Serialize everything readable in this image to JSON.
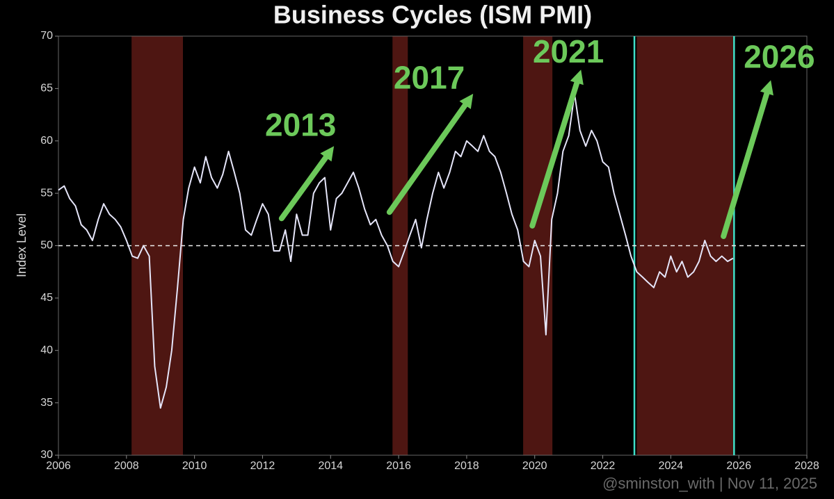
{
  "chart_data": {
    "type": "line",
    "title": "Business Cycles (ISM PMI)",
    "y_label": "Index Level",
    "credit": "@sminston_with  |  Nov 11, 2025",
    "color": "#e6e6fa",
    "x": [
      2006.0,
      2006.17,
      2006.33,
      2006.5,
      2006.67,
      2006.83,
      2007.0,
      2007.17,
      2007.33,
      2007.5,
      2007.67,
      2007.83,
      2008.0,
      2008.17,
      2008.33,
      2008.5,
      2008.67,
      2008.83,
      2009.0,
      2009.17,
      2009.33,
      2009.5,
      2009.67,
      2009.83,
      2010.0,
      2010.17,
      2010.33,
      2010.5,
      2010.67,
      2010.83,
      2011.0,
      2011.17,
      2011.33,
      2011.5,
      2011.67,
      2011.83,
      2012.0,
      2012.17,
      2012.33,
      2012.5,
      2012.67,
      2012.83,
      2013.0,
      2013.17,
      2013.33,
      2013.5,
      2013.67,
      2013.83,
      2014.0,
      2014.17,
      2014.33,
      2014.5,
      2014.67,
      2014.83,
      2015.0,
      2015.17,
      2015.33,
      2015.5,
      2015.67,
      2015.83,
      2016.0,
      2016.17,
      2016.33,
      2016.5,
      2016.67,
      2016.83,
      2017.0,
      2017.17,
      2017.33,
      2017.5,
      2017.67,
      2017.83,
      2018.0,
      2018.17,
      2018.33,
      2018.5,
      2018.67,
      2018.83,
      2019.0,
      2019.17,
      2019.33,
      2019.5,
      2019.67,
      2019.83,
      2020.0,
      2020.17,
      2020.33,
      2020.5,
      2020.67,
      2020.83,
      2021.0,
      2021.17,
      2021.33,
      2021.5,
      2021.67,
      2021.83,
      2022.0,
      2022.17,
      2022.33,
      2022.5,
      2022.67,
      2022.83,
      2023.0,
      2023.17,
      2023.33,
      2023.5,
      2023.67,
      2023.83,
      2024.0,
      2024.17,
      2024.33,
      2024.5,
      2024.67,
      2024.83,
      2025.0,
      2025.17,
      2025.33,
      2025.5,
      2025.67,
      2025.83
    ],
    "values": [
      55.3,
      55.7,
      54.5,
      53.8,
      52.0,
      51.5,
      50.5,
      52.5,
      54.0,
      53.0,
      52.5,
      51.8,
      50.5,
      49.0,
      48.8,
      50.0,
      49.0,
      38.5,
      34.5,
      36.5,
      40.0,
      46.0,
      52.5,
      55.5,
      57.5,
      56.0,
      58.5,
      56.5,
      55.5,
      56.8,
      59.0,
      57.0,
      55.0,
      51.5,
      51.0,
      52.5,
      54.0,
      53.0,
      49.5,
      49.5,
      51.5,
      48.5,
      53.0,
      51.0,
      51.0,
      55.0,
      56.0,
      56.5,
      51.5,
      54.5,
      55.0,
      56.0,
      57.0,
      55.5,
      53.5,
      52.0,
      52.5,
      51.0,
      50.0,
      48.5,
      48.0,
      49.5,
      51.0,
      52.5,
      49.8,
      52.5,
      55.0,
      57.0,
      55.5,
      57.0,
      59.0,
      58.5,
      60.0,
      59.5,
      59.0,
      60.5,
      59.0,
      58.5,
      57.0,
      55.0,
      53.0,
      51.5,
      48.5,
      48.0,
      50.5,
      49.0,
      41.5,
      52.5,
      55.0,
      59.0,
      60.5,
      64.5,
      61.0,
      59.5,
      61.0,
      60.0,
      58.0,
      57.5,
      55.0,
      53.0,
      51.0,
      49.0,
      47.5,
      47.0,
      46.5,
      46.0,
      47.5,
      47.0,
      49.0,
      47.5,
      48.5,
      47.0,
      47.5,
      48.5,
      50.5,
      49.0,
      48.5,
      49.0,
      48.5,
      48.8
    ],
    "xlim": [
      2006,
      2028
    ],
    "ylim": [
      30,
      70
    ],
    "xticks": [
      2006,
      2008,
      2010,
      2012,
      2014,
      2016,
      2018,
      2020,
      2022,
      2024,
      2026,
      2028
    ],
    "yticks": [
      30,
      35,
      40,
      45,
      50,
      55,
      60,
      65,
      70
    ],
    "reference_line": 50,
    "shaded_periods": [
      [
        2008.15,
        2009.66
      ],
      [
        2015.82,
        2016.27
      ],
      [
        2019.66,
        2020.52
      ],
      [
        2023.0,
        2025.86
      ]
    ],
    "shade_color": "#5c1a15",
    "vlines": [
      2022.93,
      2025.86
    ],
    "vline_color": "#40e0c8",
    "annotation_color": "#6cc95a",
    "annotations": [
      {
        "text": "2013",
        "x": 2013.12,
        "y": 61.3,
        "arrow": [
          [
            2012.56,
            52.6
          ],
          [
            2014.1,
            59.5
          ]
        ]
      },
      {
        "text": "2017",
        "x": 2016.9,
        "y": 65.8,
        "arrow": [
          [
            2015.73,
            53.2
          ],
          [
            2018.19,
            64.5
          ]
        ]
      },
      {
        "text": "2021",
        "x": 2020.99,
        "y": 68.3,
        "arrow": [
          [
            2019.93,
            51.9
          ],
          [
            2021.36,
            66.8
          ]
        ]
      },
      {
        "text": "2026",
        "x": 2027.19,
        "y": 67.8,
        "arrow": [
          [
            2025.55,
            50.9
          ],
          [
            2026.94,
            65.8
          ]
        ]
      }
    ]
  }
}
